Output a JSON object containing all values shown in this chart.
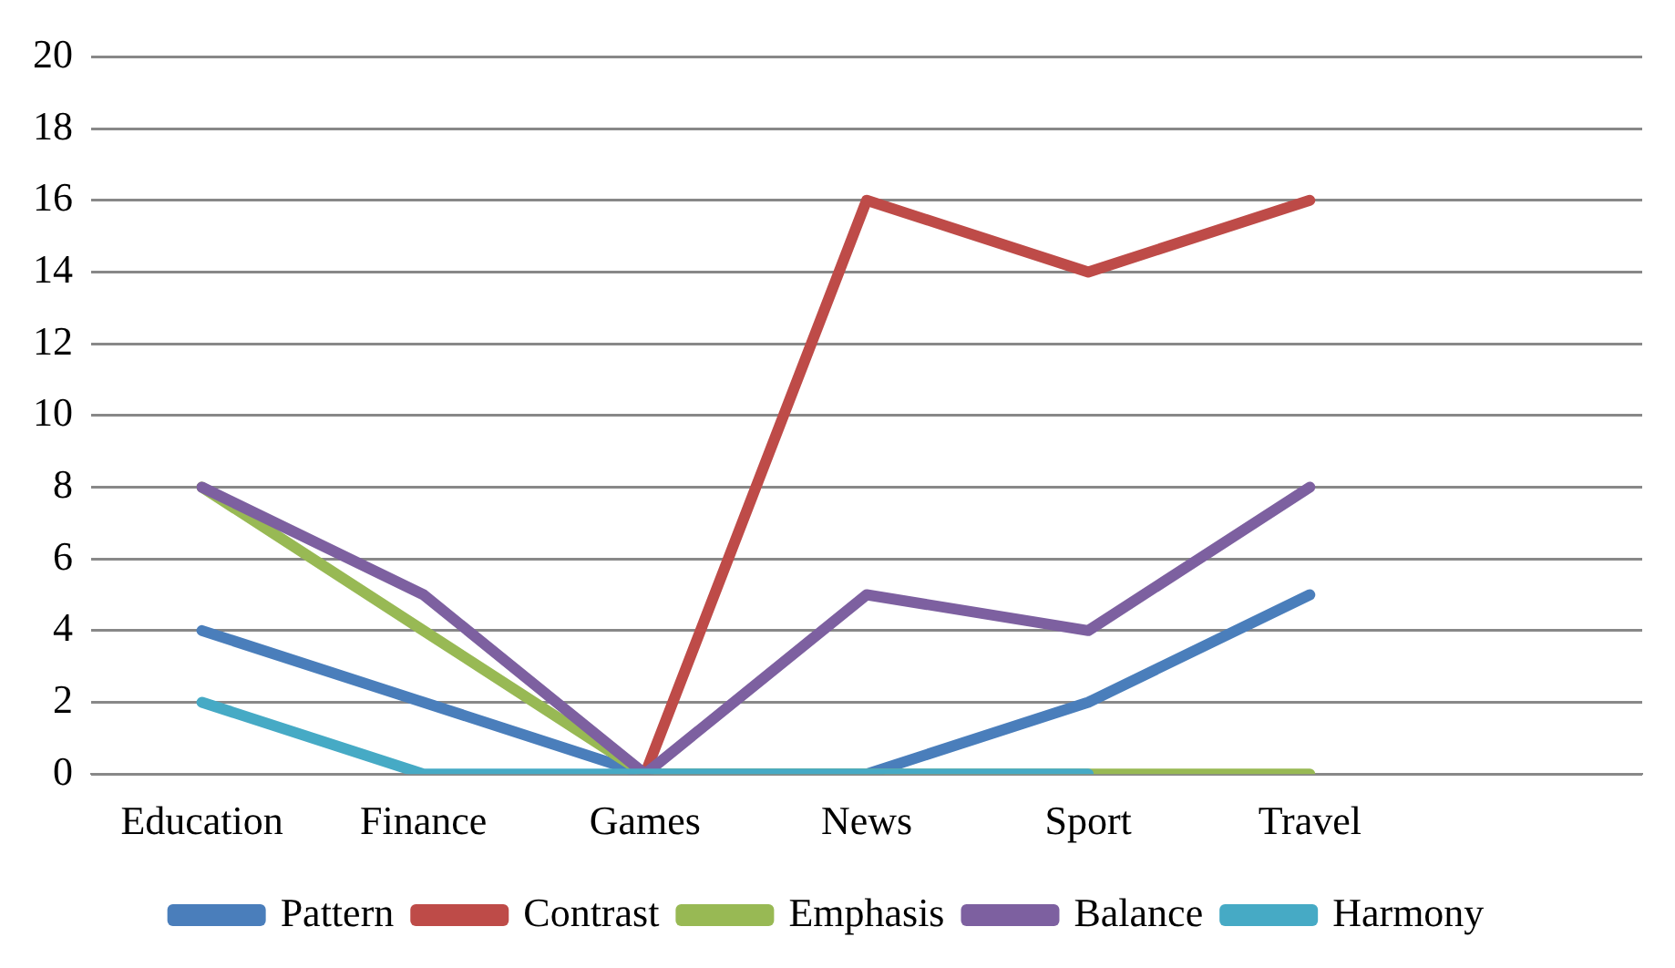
{
  "chart_data": {
    "type": "line",
    "categories": [
      "Education",
      "Finance",
      "Games",
      "News",
      "Sport",
      "Travel",
      null
    ],
    "series": [
      {
        "name": "Pattern",
        "color": "#4a7ebb",
        "values": [
          4,
          2,
          0,
          0,
          2,
          5,
          null
        ]
      },
      {
        "name": "Contrast",
        "color": "#be4b48",
        "values": [
          null,
          null,
          0,
          16,
          14,
          16,
          null
        ]
      },
      {
        "name": "Emphasis",
        "color": "#98b954",
        "values": [
          8,
          4,
          0,
          0,
          0,
          0,
          null
        ]
      },
      {
        "name": "Balance",
        "color": "#7d60a0",
        "values": [
          8,
          5,
          0,
          5,
          4,
          8,
          null
        ]
      },
      {
        "name": "Harmony",
        "color": "#46aac5",
        "values": [
          2,
          0,
          0,
          0,
          0,
          null,
          null
        ]
      }
    ],
    "ylim": [
      0,
      20
    ],
    "yticks": [
      0,
      2,
      4,
      6,
      8,
      10,
      12,
      14,
      16,
      18,
      20
    ],
    "grid": "y",
    "legend": "bottom",
    "marker": "none",
    "line_style": "solid"
  }
}
